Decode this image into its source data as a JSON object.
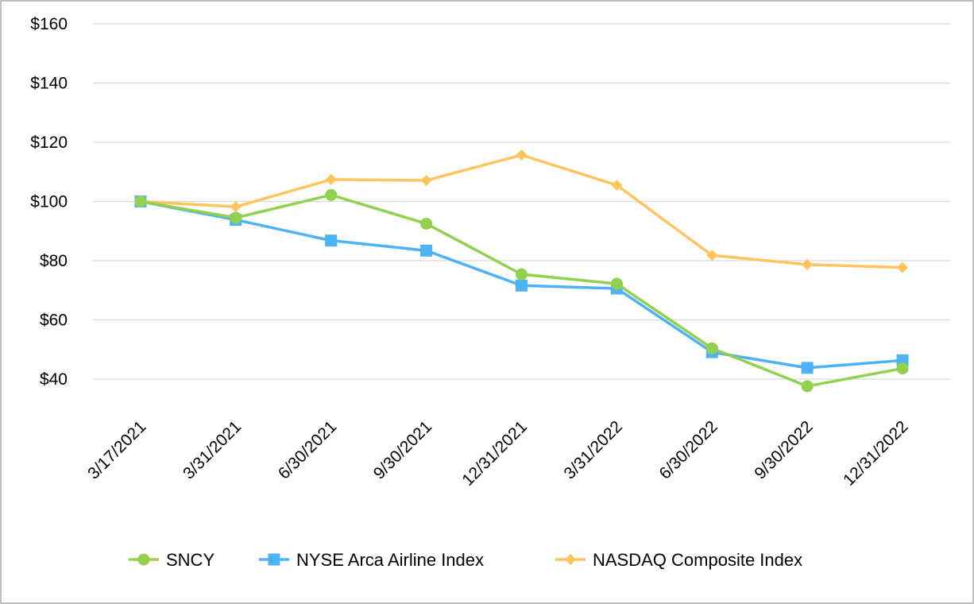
{
  "chart_data": {
    "type": "line",
    "title": "",
    "xlabel": "",
    "ylabel": "",
    "categories": [
      "3/17/2021",
      "3/31/2021",
      "6/30/2021",
      "9/30/2021",
      "12/31/2021",
      "3/31/2022",
      "6/30/2022",
      "9/30/2022",
      "12/31/2022"
    ],
    "ylim": [
      40,
      160
    ],
    "yticks": [
      40,
      60,
      80,
      100,
      120,
      140,
      160
    ],
    "ytick_labels": [
      "$40",
      "$60",
      "$80",
      "$100",
      "$120",
      "$140",
      "$160"
    ],
    "grid": true,
    "legend_position": "bottom",
    "series": [
      {
        "name": "SNCY",
        "color": "#92d050",
        "marker": "circle",
        "values": [
          100,
          94.5,
          102.2,
          92.5,
          75.4,
          72.2,
          50.4,
          37.6,
          43.6
        ]
      },
      {
        "name": "NYSE Arca Airline Index",
        "color": "#4db3f7",
        "marker": "square",
        "values": [
          100,
          93.8,
          86.8,
          83.4,
          71.6,
          70.6,
          49.1,
          43.8,
          46.3
        ]
      },
      {
        "name": "NASDAQ Composite Index",
        "color": "#ffc45e",
        "marker": "diamond",
        "values": [
          100,
          98.2,
          107.4,
          107.1,
          115.7,
          105.5,
          81.8,
          78.7,
          77.7
        ]
      }
    ]
  }
}
